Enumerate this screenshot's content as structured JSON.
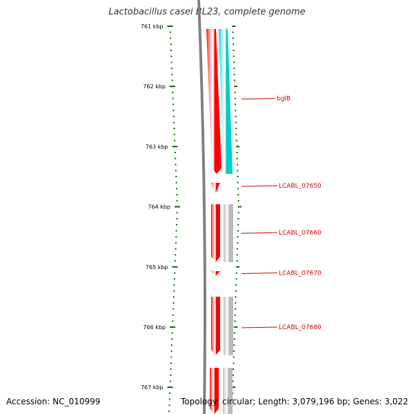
{
  "title": "Lactobacillus casei BL23, complete genome",
  "accession": "Accession: NC_010999",
  "topology": "Topology: circular; Length: 3,079,196 bp; Genes: 3,022",
  "colors": {
    "backbone": "#808080",
    "forward_gene": "#ff0000",
    "rna_gene": "#00cccc",
    "reverse_gene": "#bbbbbb",
    "tick": "#006600",
    "label": "#cc0000"
  },
  "ticks": [
    {
      "kbp": 761,
      "label": "761 kbp"
    },
    {
      "kbp": 762,
      "label": "762 kbp"
    },
    {
      "kbp": 763,
      "label": "763 kbp"
    },
    {
      "kbp": 764,
      "label": "764 kbp"
    },
    {
      "kbp": 765,
      "label": "765 kbp"
    },
    {
      "kbp": 766,
      "label": "766 kbp"
    },
    {
      "kbp": 767,
      "label": "767 kbp"
    }
  ],
  "genes": [
    {
      "name": "bglB",
      "labeled": true,
      "label_kbp": 762.2
    },
    {
      "name": "LCABL_07650",
      "labeled": true,
      "label_kbp": 763.65
    },
    {
      "name": "LCABL_07660",
      "labeled": true,
      "label_kbp": 764.43
    },
    {
      "name": "LCABL_07670",
      "labeled": true,
      "label_kbp": 765.1
    },
    {
      "name": "LCABL_07680",
      "labeled": true,
      "label_kbp": 766.0
    }
  ]
}
